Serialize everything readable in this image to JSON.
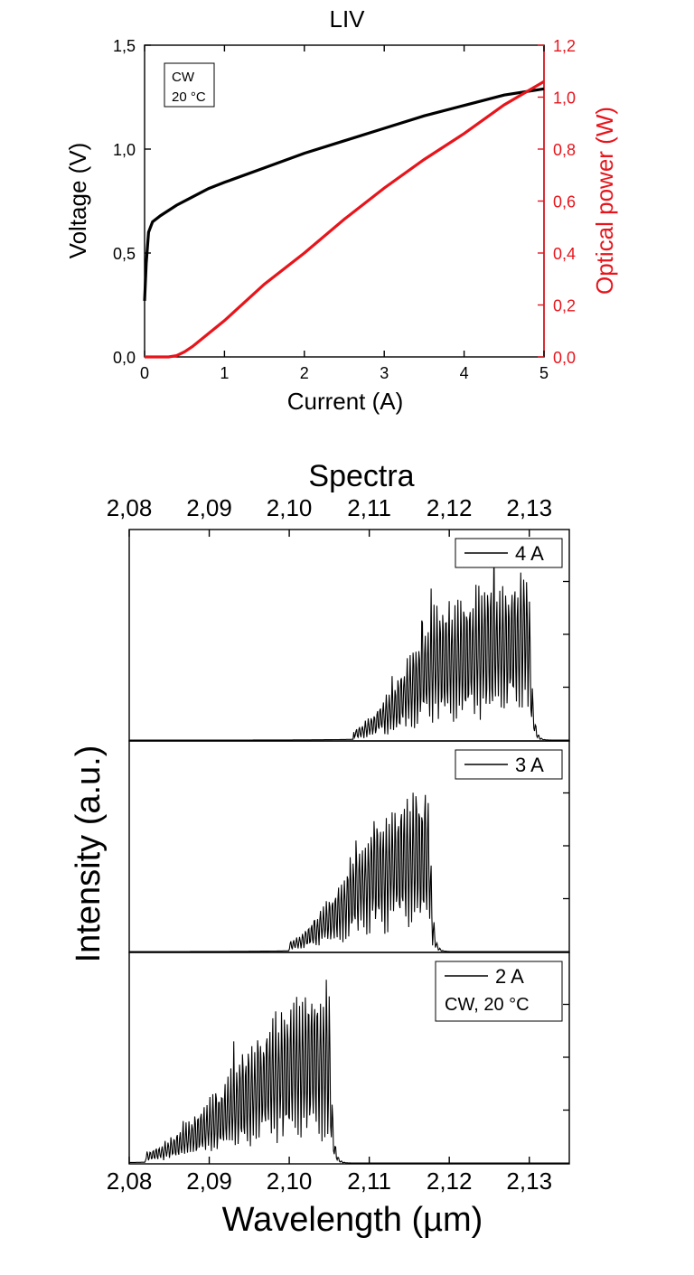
{
  "chart_data": [
    {
      "type": "line",
      "title": "LIV",
      "xlabel": "Current (A)",
      "ylabel": "Voltage (V)",
      "y2label": "Optical power (W)",
      "xlim": [
        0,
        5
      ],
      "ylim": [
        0,
        1.5
      ],
      "y2lim": [
        0,
        1.2
      ],
      "xticks": [
        "0",
        "1",
        "2",
        "3",
        "4",
        "5"
      ],
      "yticks": [
        "0,0",
        "0,5",
        "1,0",
        "1,5"
      ],
      "y2ticks": [
        "0,0",
        "0,2",
        "0,4",
        "0,6",
        "0,8",
        "1,0",
        "1,2"
      ],
      "annotation": [
        "CW",
        "20 °C"
      ],
      "colors": {
        "voltage": "#000000",
        "power": "#e8141b"
      },
      "series": [
        {
          "axis": "left",
          "x": [
            0,
            0.02,
            0.05,
            0.1,
            0.2,
            0.4,
            0.6,
            0.8,
            1.0,
            1.5,
            2.0,
            2.5,
            3.0,
            3.5,
            4.0,
            4.5,
            5.0
          ],
          "values": [
            0.27,
            0.45,
            0.6,
            0.65,
            0.68,
            0.73,
            0.77,
            0.81,
            0.84,
            0.91,
            0.98,
            1.04,
            1.1,
            1.16,
            1.21,
            1.26,
            1.29
          ]
        },
        {
          "axis": "right",
          "x": [
            0,
            0.3,
            0.4,
            0.5,
            0.6,
            0.8,
            1.0,
            1.5,
            2.0,
            2.5,
            3.0,
            3.5,
            4.0,
            4.5,
            5.0
          ],
          "values": [
            0,
            0,
            0.005,
            0.02,
            0.04,
            0.09,
            0.14,
            0.28,
            0.4,
            0.53,
            0.65,
            0.76,
            0.86,
            0.97,
            1.06
          ]
        }
      ]
    },
    {
      "type": "line",
      "title": "Spectra",
      "xlabel": "Wavelength (µm)",
      "ylabel": "Intensity (a.u.)",
      "xlim": [
        2.08,
        2.135
      ],
      "xticks": [
        "2,08",
        "2,09",
        "2,10",
        "2,11",
        "2,12",
        "2,13"
      ],
      "panels": [
        {
          "name": "4 A",
          "x_start": 2.108,
          "x_peak_start": 2.118,
          "x_cutoff": 2.13,
          "peak": 0.85
        },
        {
          "name": "3 A",
          "x_start": 2.1,
          "x_peak_start": 2.11,
          "x_cutoff": 2.1175,
          "peak": 0.83
        },
        {
          "name": "2 A",
          "x_start": 2.082,
          "x_peak_start": 2.097,
          "x_cutoff": 2.105,
          "peak": 0.9,
          "annotation": "CW, 20 °C"
        }
      ]
    }
  ]
}
